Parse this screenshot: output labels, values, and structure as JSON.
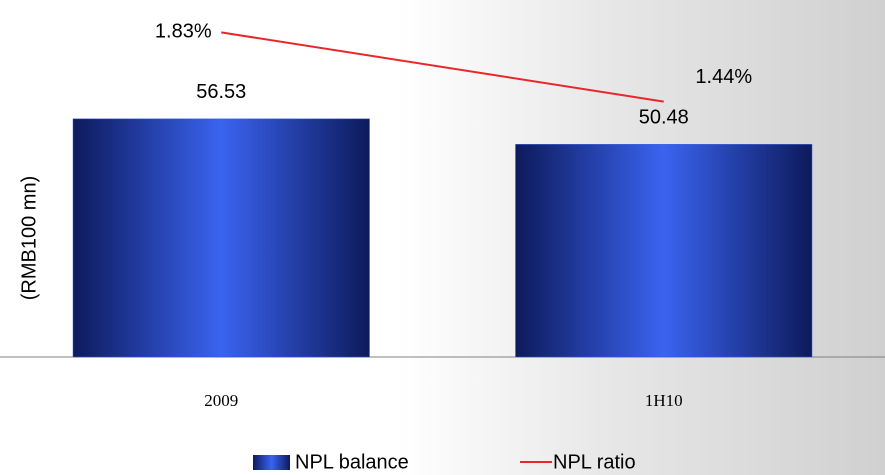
{
  "chart_data": {
    "type": "bar-line",
    "y_label": "(RMB100 mn)",
    "categories": [
      "2009",
      "1H10"
    ],
    "series": [
      {
        "name": "NPL balance",
        "type": "bar",
        "color": "#2f56e0",
        "values": [
          56.53,
          50.48
        ]
      },
      {
        "name": "NPL ratio",
        "type": "line",
        "axis": "y2",
        "color": "#e8262b",
        "values": [
          1.83,
          1.44
        ],
        "value_labels": [
          "1.83%",
          "1.44%"
        ]
      }
    ],
    "ylim": [
      0,
      80
    ],
    "y2lim": [
      0,
      1.9
    ],
    "legend": "bottom"
  }
}
